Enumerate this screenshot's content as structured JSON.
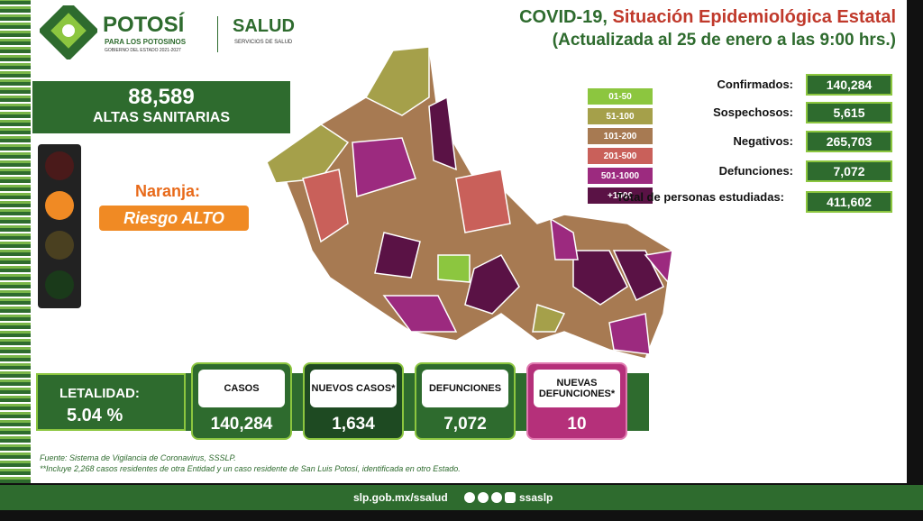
{
  "logo": {
    "name": "POTOSÍ",
    "slogan": "PARA LOS POTOSINOS",
    "government": "GOBIERNO DEL ESTADO 2021-2027",
    "agency": "SALUD",
    "agency_sub": "SERVICIOS DE SALUD"
  },
  "header": {
    "title_prefix": "COVID-19,",
    "title_main": "Situación Epidemiológica Estatal",
    "subtitle": "(Actualizada al 25 de enero a las 9:00 hrs.)"
  },
  "altas": {
    "value": "88,589",
    "label": "ALTAS SANITARIAS"
  },
  "semaforo": {
    "color": "Naranja:",
    "risk": "Riesgo ALTO"
  },
  "legend": [
    {
      "label": "01-50",
      "color": "#8cc63f"
    },
    {
      "label": "51-100",
      "color": "#a5a04a"
    },
    {
      "label": "101-200",
      "color": "#a77a52"
    },
    {
      "label": "201-500",
      "color": "#c9605a"
    },
    {
      "label": "501-1000",
      "color": "#9c2a7f"
    },
    {
      "label": "+1000",
      "color": "#5a1245"
    }
  ],
  "stats": [
    {
      "label": "Confirmados:",
      "value": "140,284"
    },
    {
      "label": "Sospechosos:",
      "value": "5,615"
    },
    {
      "label": "Negativos:",
      "value": "265,703"
    },
    {
      "label": "Defunciones:",
      "value": "7,072"
    },
    {
      "label": "Total de personas estudiadas:",
      "value": "411,602"
    }
  ],
  "letalidad": {
    "label": "LETALIDAD:",
    "value": "5.04 %"
  },
  "cards": [
    {
      "label": "CASOS",
      "value": "140,284"
    },
    {
      "label": "NUEVOS CASOS*",
      "value": "1,634"
    },
    {
      "label": "DEFUNCIONES",
      "value": "7,072"
    },
    {
      "label": "NUEVAS DEFUNCIONES*",
      "value": "10"
    }
  ],
  "footnotes": [
    "Fuente: Sistema de Vigilancia de Coronavirus, SSSLP.",
    "**Incluye 2,268 casos residentes de otra Entidad y un caso residente de San Luis Potosí, identificada en otro Estado."
  ],
  "footer": {
    "url": "slp.gob.mx/ssalud",
    "handle": "ssaslp"
  }
}
